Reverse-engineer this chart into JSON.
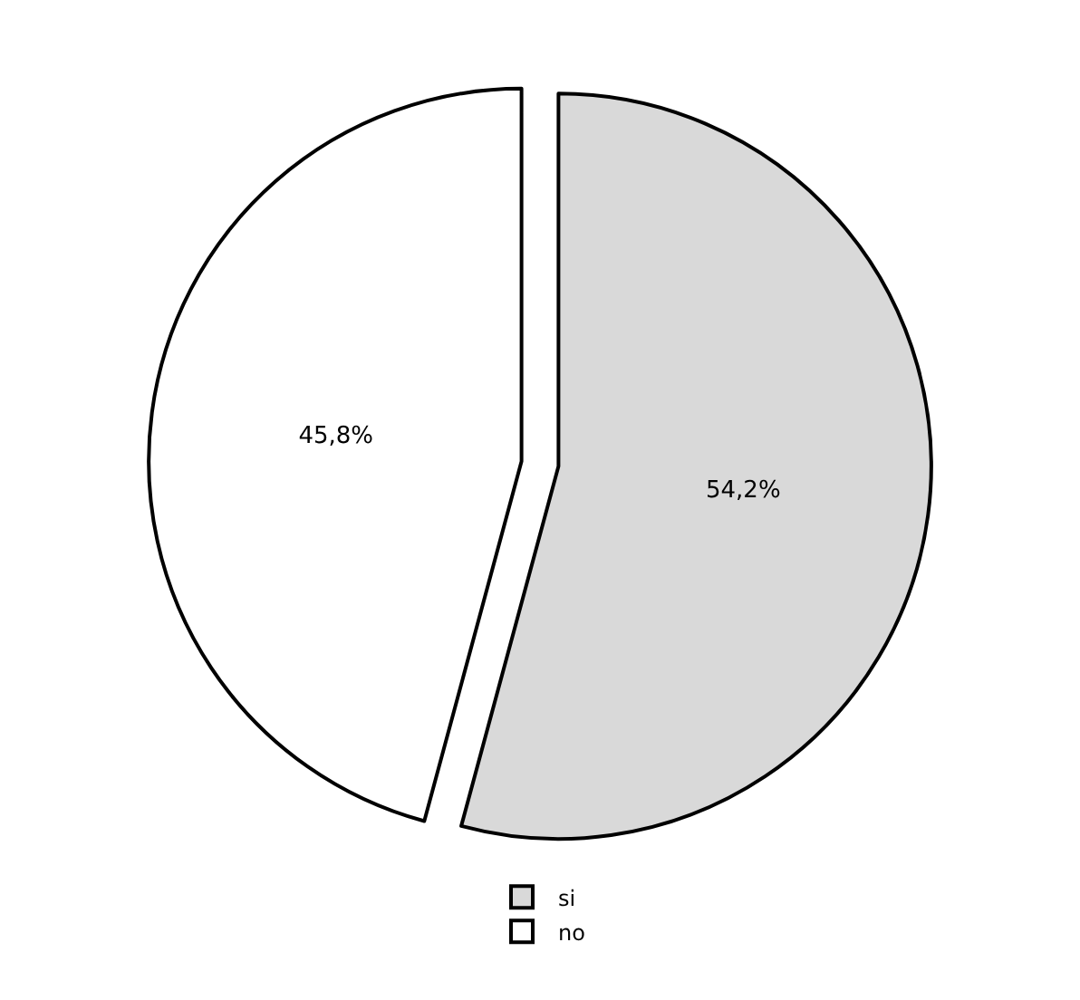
{
  "chart_data": {
    "type": "pie",
    "categories": [
      "si",
      "no"
    ],
    "values": [
      54.2,
      45.8
    ],
    "colors": [
      "#d9d9d9",
      "#ffffff"
    ],
    "value_labels": [
      "54,2%",
      "45,8%"
    ],
    "legend": "bottom"
  }
}
